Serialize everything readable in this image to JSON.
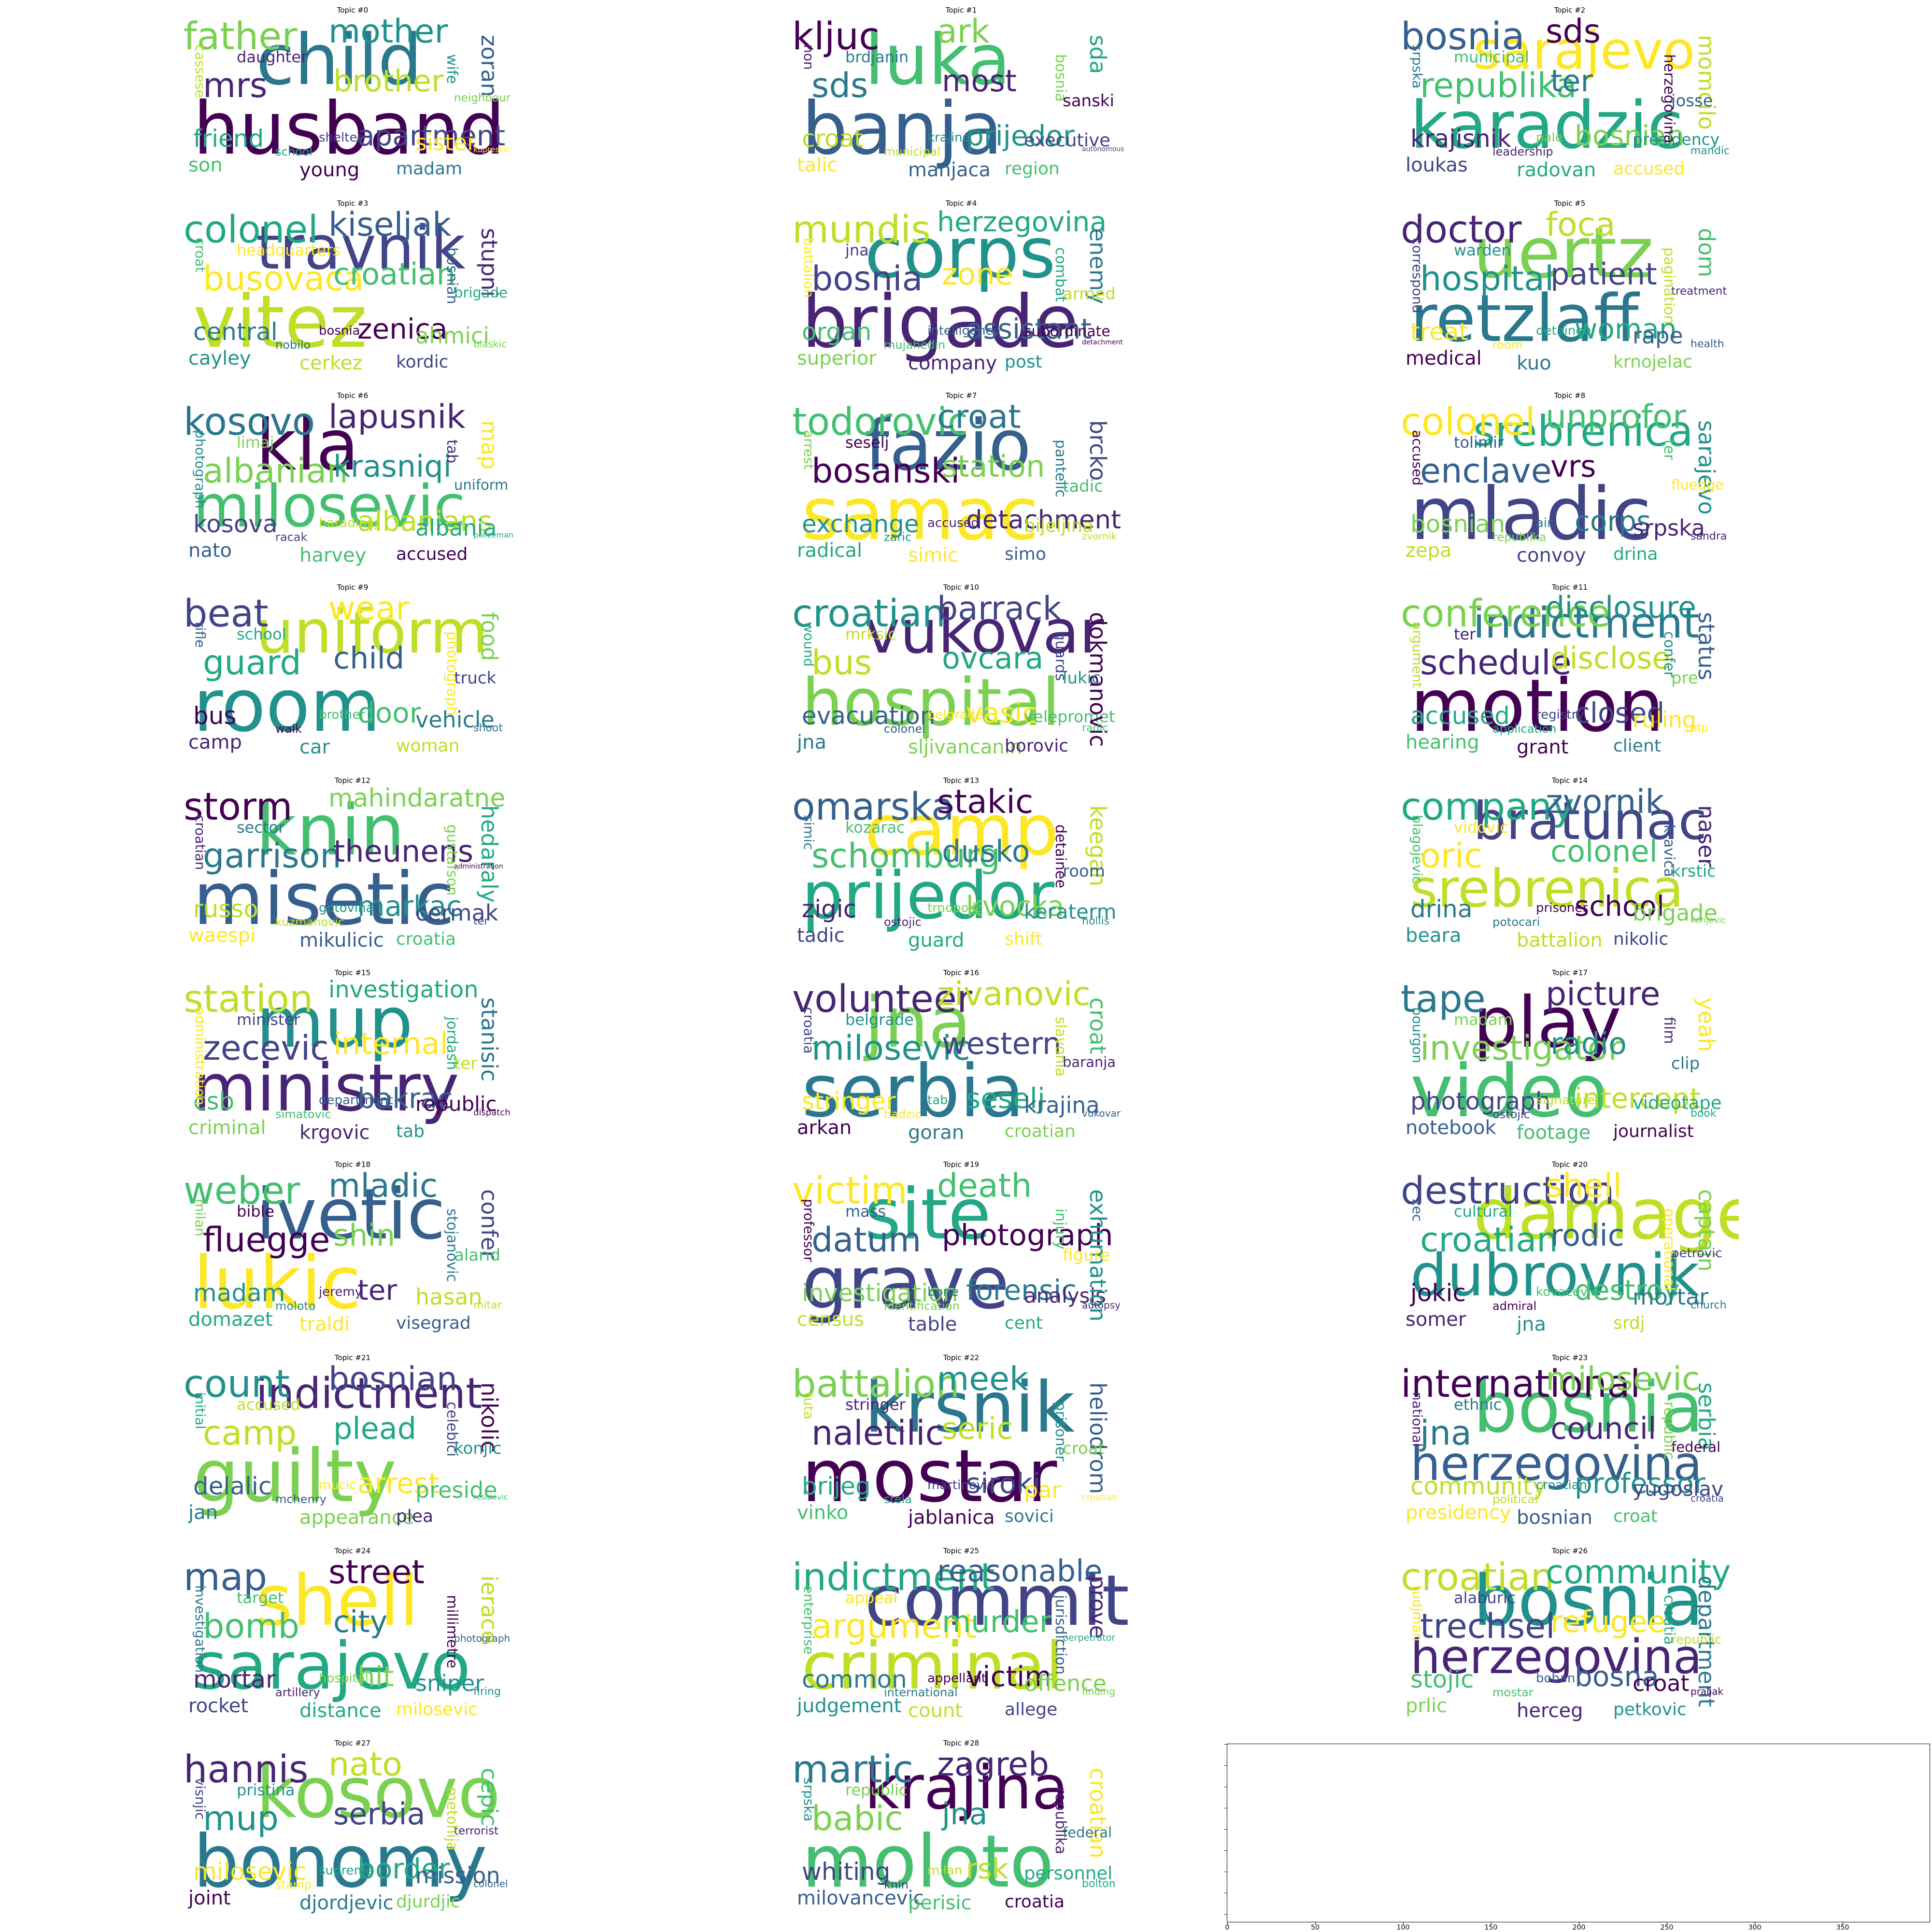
{
  "palette": [
    "#440154",
    "#482475",
    "#414487",
    "#355f8d",
    "#2a788e",
    "#21918c",
    "#22a884",
    "#44bf70",
    "#7ad151",
    "#bddf26",
    "#fde725"
  ],
  "topics": [
    {
      "title": "Topic #0",
      "words": [
        "husband",
        "child",
        "father",
        "mrs",
        "mother",
        "brother",
        "apartment",
        "friend",
        "sister",
        "zoran",
        "son",
        "young",
        "madam",
        "neighbour",
        "daughter",
        "wife",
        "cassese",
        "shelter",
        "school",
        "kupreskic"
      ]
    },
    {
      "title": "Topic #1",
      "words": [
        "banja",
        "luka",
        "kljuc",
        "sds",
        "ark",
        "most",
        "prijedor",
        "croat",
        "executive",
        "sda",
        "talic",
        "manjaca",
        "region",
        "sanski",
        "brdjanin",
        "bosnia",
        "non",
        "krajina",
        "municipal",
        "autonomous"
      ]
    },
    {
      "title": "Topic #2",
      "words": [
        "karadzic",
        "sarajevo",
        "bosnia",
        "republika",
        "sds",
        "ter",
        "bosnian",
        "krajisnik",
        "presidency",
        "momcilo",
        "loukas",
        "radovan",
        "accused",
        "josse",
        "municipal",
        "herzegovina",
        "srpska",
        "pale",
        "leadership",
        "mandic"
      ]
    },
    {
      "title": "Topic #3",
      "words": [
        "vitez",
        "travnik",
        "colonel",
        "busovaca",
        "kiseljak",
        "croatian",
        "zenica",
        "central",
        "ahmici",
        "stupni",
        "cayley",
        "cerkez",
        "kordic",
        "brigade",
        "headquarters",
        "bosnian",
        "croat",
        "bosnia",
        "nobilo",
        "blaskic"
      ]
    },
    {
      "title": "Topic #4",
      "words": [
        "brigade",
        "corps",
        "mundis",
        "bosnia",
        "herzegovina",
        "zone",
        "assistant",
        "organ",
        "subordinate",
        "enemy",
        "superior",
        "company",
        "post",
        "armed",
        "jna",
        "combat",
        "battalion",
        "intelligence",
        "mujahedin",
        "detachment"
      ]
    },
    {
      "title": "Topic #5",
      "words": [
        "retzlaff",
        "uertz",
        "doctor",
        "hospital",
        "foca",
        "patient",
        "woman",
        "treat",
        "rape",
        "dom",
        "medical",
        "kuo",
        "krnojelac",
        "treatment",
        "warden",
        "pagination",
        "correspond",
        "detainee",
        "room",
        "health"
      ]
    },
    {
      "title": "Topic #6",
      "words": [
        "milosevic",
        "kla",
        "kosovo",
        "albanian",
        "lapusnik",
        "krasniqi",
        "albanians",
        "kosova",
        "albania",
        "map",
        "nato",
        "harvey",
        "accused",
        "uniform",
        "limaj",
        "tab",
        "photograph",
        "haradinaj",
        "racak",
        "policeman"
      ]
    },
    {
      "title": "Topic #7",
      "words": [
        "samac",
        "fazio",
        "todorovic",
        "bosanski",
        "croat",
        "station",
        "detachment",
        "exchange",
        "bijeljina",
        "brcko",
        "radical",
        "simic",
        "simo",
        "tadic",
        "seselj",
        "pantelic",
        "arrest",
        "accused",
        "zaric",
        "zvornik"
      ]
    },
    {
      "title": "Topic #8",
      "words": [
        "mladic",
        "srebrenica",
        "colonel",
        "enclave",
        "unprofor",
        "vrs",
        "corps",
        "bosnian",
        "srpska",
        "sarajevo",
        "zepa",
        "convoy",
        "drina",
        "fluegge",
        "tolimir",
        "ter",
        "accused",
        "air",
        "republika",
        "sandra"
      ]
    },
    {
      "title": "Topic #9",
      "words": [
        "room",
        "uniform",
        "beat",
        "guard",
        "wear",
        "child",
        "door",
        "bus",
        "vehicle",
        "food",
        "camp",
        "car",
        "woman",
        "truck",
        "school",
        "photograph",
        "rifle",
        "brother",
        "walk",
        "shoot"
      ]
    },
    {
      "title": "Topic #10",
      "words": [
        "hospital",
        "vukovar",
        "croatian",
        "bus",
        "barrack",
        "ovcara",
        "vasic",
        "evacuation",
        "velepromet",
        "dokmanovic",
        "jna",
        "sljivancanin",
        "borovic",
        "lukic",
        "mrksic",
        "guards",
        "wound",
        "belgrade",
        "colonel",
        "radic"
      ]
    },
    {
      "title": "Topic #11",
      "words": [
        "motion",
        "indictment",
        "conference",
        "schedule",
        "disclosure",
        "disclose",
        "closed",
        "accused",
        "ruling",
        "status",
        "hearing",
        "grant",
        "client",
        "pre",
        "ter",
        "confer",
        "argument",
        "registry",
        "application",
        "otp"
      ]
    },
    {
      "title": "Topic #12",
      "words": [
        "misetic",
        "knin",
        "storm",
        "garrison",
        "mahindaratne",
        "theunens",
        "markac",
        "russo",
        "cermak",
        "hedaraly",
        "waespi",
        "mikulicic",
        "croatia",
        "administration",
        "sector",
        "gustafson",
        "croatian",
        "gotovina",
        "kuzmanovic",
        "ter"
      ]
    },
    {
      "title": "Topic #13",
      "words": [
        "prijedor",
        "camp",
        "omarska",
        "schomburg",
        "stakic",
        "dusko",
        "kvocka",
        "zigic",
        "keraterm",
        "keegan",
        "tadic",
        "guard",
        "shift",
        "room",
        "kozarac",
        "detainee",
        "simic",
        "trnopolje",
        "ostojic",
        "hollis"
      ]
    },
    {
      "title": "Topic #14",
      "words": [
        "srebrenica",
        "bratunac",
        "company",
        "oric",
        "zvornik",
        "colonel",
        "school",
        "drina",
        "brigade",
        "naser",
        "beara",
        "battalion",
        "nikolic",
        "krstic",
        "vidovic",
        "kravica",
        "blagojevic",
        "prisoner",
        "potocari",
        "konjevic"
      ]
    },
    {
      "title": "Topic #15",
      "words": [
        "ministry",
        "mup",
        "station",
        "zecevic",
        "investigation",
        "internal",
        "bakrac",
        "csb",
        "republic",
        "stanisic",
        "criminal",
        "krgovic",
        "tab",
        "ter",
        "minister",
        "jordash",
        "administration",
        "department",
        "simatovic",
        "dispatch"
      ]
    },
    {
      "title": "Topic #16",
      "words": [
        "serbia",
        "jna",
        "volunteer",
        "milosevic",
        "zivanovic",
        "western",
        "seselj",
        "stringer",
        "krajina",
        "croat",
        "arkan",
        "goran",
        "croatian",
        "baranja",
        "belgrade",
        "slavonia",
        "croatia",
        "tab",
        "hadzic",
        "vukovar"
      ]
    },
    {
      "title": "Topic #17",
      "words": [
        "video",
        "play",
        "tape",
        "investigator",
        "picture",
        "radio",
        "intercept",
        "photograph",
        "videotape",
        "yeah",
        "notebook",
        "footage",
        "journalist",
        "clip",
        "madam",
        "film",
        "bourgon",
        "signature",
        "ostojic",
        "book"
      ]
    },
    {
      "title": "Topic #18",
      "words": [
        "lukic",
        "ivetic",
        "weber",
        "fluegge",
        "mladic",
        "shin",
        "ter",
        "madam",
        "hasan",
        "confer",
        "domazet",
        "traldi",
        "visegrad",
        "alarid",
        "bible",
        "stojanovic",
        "milan",
        "jeremy",
        "moloto",
        "mitar"
      ]
    },
    {
      "title": "Topic #19",
      "words": [
        "grave",
        "site",
        "victim",
        "datum",
        "death",
        "photograph",
        "forensic",
        "investigation",
        "analysis",
        "exhumation",
        "census",
        "table",
        "cent",
        "figure",
        "mass",
        "injury",
        "professor",
        "bone",
        "identification",
        "autopsy"
      ]
    },
    {
      "title": "Topic #20",
      "words": [
        "dubrovnik",
        "damage",
        "destruction",
        "croatian",
        "shell",
        "rodic",
        "destroy",
        "jokic",
        "mortar",
        "captain",
        "somer",
        "jna",
        "srdj",
        "petrovic",
        "cultural",
        "operational",
        "zec",
        "kovacevic",
        "admiral",
        "church"
      ]
    },
    {
      "title": "Topic #21",
      "words": [
        "guilty",
        "indictment",
        "count",
        "camp",
        "bosnian",
        "plead",
        "arrest",
        "delalic",
        "preside",
        "nikolic",
        "jan",
        "appearance",
        "plea",
        "konjic",
        "accused",
        "celebici",
        "initial",
        "mucic",
        "mchenry",
        "residovic"
      ]
    },
    {
      "title": "Topic #22",
      "words": [
        "mostar",
        "krsnik",
        "battalion",
        "naletilic",
        "meek",
        "seric",
        "siroki",
        "brijeg",
        "par",
        "heliodrom",
        "vinko",
        "jablanica",
        "sovici",
        "croat",
        "stringer",
        "prisoner",
        "tuta",
        "martinovic",
        "stela",
        "croatian"
      ]
    },
    {
      "title": "Topic #23",
      "words": [
        "herzegovina",
        "bosnia",
        "international",
        "jna",
        "milosevic",
        "council",
        "professor",
        "community",
        "yugoslav",
        "serbia",
        "presidency",
        "bosnian",
        "croat",
        "federal",
        "ethnic",
        "republic",
        "national",
        "croatian",
        "political",
        "croatia"
      ]
    },
    {
      "title": "Topic #24",
      "words": [
        "sarajevo",
        "shell",
        "map",
        "bomb",
        "street",
        "city",
        "hit",
        "mortar",
        "sniper",
        "ierace",
        "rocket",
        "distance",
        "milosevic",
        "photograph",
        "target",
        "millimetre",
        "investigation",
        "hospital",
        "artillery",
        "firing"
      ]
    },
    {
      "title": "Topic #25",
      "words": [
        "criminal",
        "commit",
        "indictment",
        "argument",
        "reasonable",
        "murder",
        "victim",
        "common",
        "offence",
        "prove",
        "judgement",
        "count",
        "allege",
        "perpetrator",
        "appeal",
        "jurisdiction",
        "enterprise",
        "appellant",
        "international",
        "finding"
      ]
    },
    {
      "title": "Topic #26",
      "words": [
        "herzegovina",
        "bosnia",
        "croatian",
        "trechsel",
        "community",
        "refugee",
        "bosna",
        "stojic",
        "croat",
        "department",
        "prlic",
        "herceg",
        "petkovic",
        "republic",
        "alaburic",
        "croatia",
        "tudjman",
        "boban",
        "mostar",
        "praljak"
      ]
    },
    {
      "title": "Topic #27",
      "words": [
        "bonomy",
        "kosovo",
        "hannis",
        "mup",
        "nato",
        "serbia",
        "border",
        "milosevic",
        "mission",
        "cepic",
        "joint",
        "djordjevic",
        "djurdjic",
        "terrorist",
        "pristina",
        "metohija",
        "visnjic",
        "supreme",
        "stamp",
        "colonel"
      ]
    },
    {
      "title": "Topic #28",
      "words": [
        "moloto",
        "krajina",
        "martic",
        "babic",
        "zagreb",
        "jna",
        "rsk",
        "whiting",
        "personnel",
        "croatian",
        "milovancevic",
        "perisic",
        "croatia",
        "federal",
        "republic",
        "republika",
        "srpska",
        "milan",
        "knin",
        "bolton"
      ]
    }
  ],
  "empty_axes": {
    "x_ticks": [
      "0",
      "50",
      "100",
      "150",
      "200",
      "250",
      "300",
      "350"
    ],
    "xlim": [
      0,
      400
    ]
  }
}
